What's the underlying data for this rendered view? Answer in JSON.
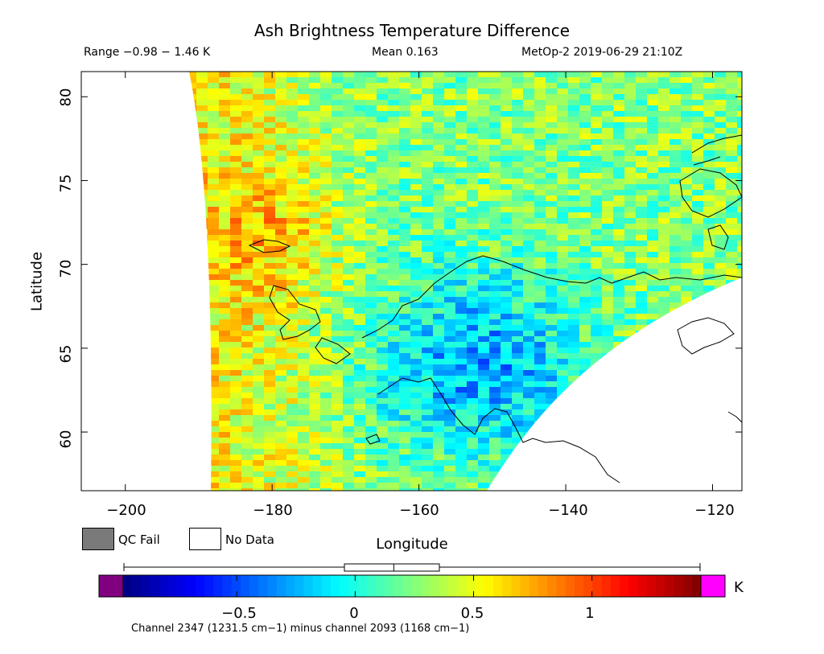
{
  "header": {
    "title": "Ash Brightness Temperature Difference",
    "range": "Range −0.98 − 1.46 K",
    "mean": "Mean 0.163",
    "satellite": "MetOp-2 2019-06-29 21:10Z"
  },
  "map": {
    "x_axis_label": "Longitude",
    "y_axis_label": "Latitude",
    "x_ticks": [
      "−200",
      "−180",
      "−160",
      "−140",
      "−120"
    ],
    "y_ticks": [
      "60",
      "65",
      "70",
      "75",
      "80"
    ],
    "lon_range": [
      -206,
      -116
    ],
    "lat_range": [
      56.5,
      81.5
    ]
  },
  "legend": {
    "qc_fail_label": "QC Fail",
    "no_data_label": "No Data",
    "qc_fail_color": "#7a7a7a",
    "no_data_color": "#ffffff"
  },
  "colorbar": {
    "min": -0.98,
    "max": 1.46,
    "ticks": [
      "−0.5",
      "0",
      "0.5",
      "1"
    ],
    "tick_values": [
      -0.5,
      0,
      0.5,
      1
    ],
    "unit": "K",
    "caption": "Channel 2347 (1231.5 cm−1) minus channel 2093 (1168 cm−1)",
    "underflow_color": "#800080",
    "overflow_color": "#ff00ff",
    "mean_marker": 0.163
  }
}
